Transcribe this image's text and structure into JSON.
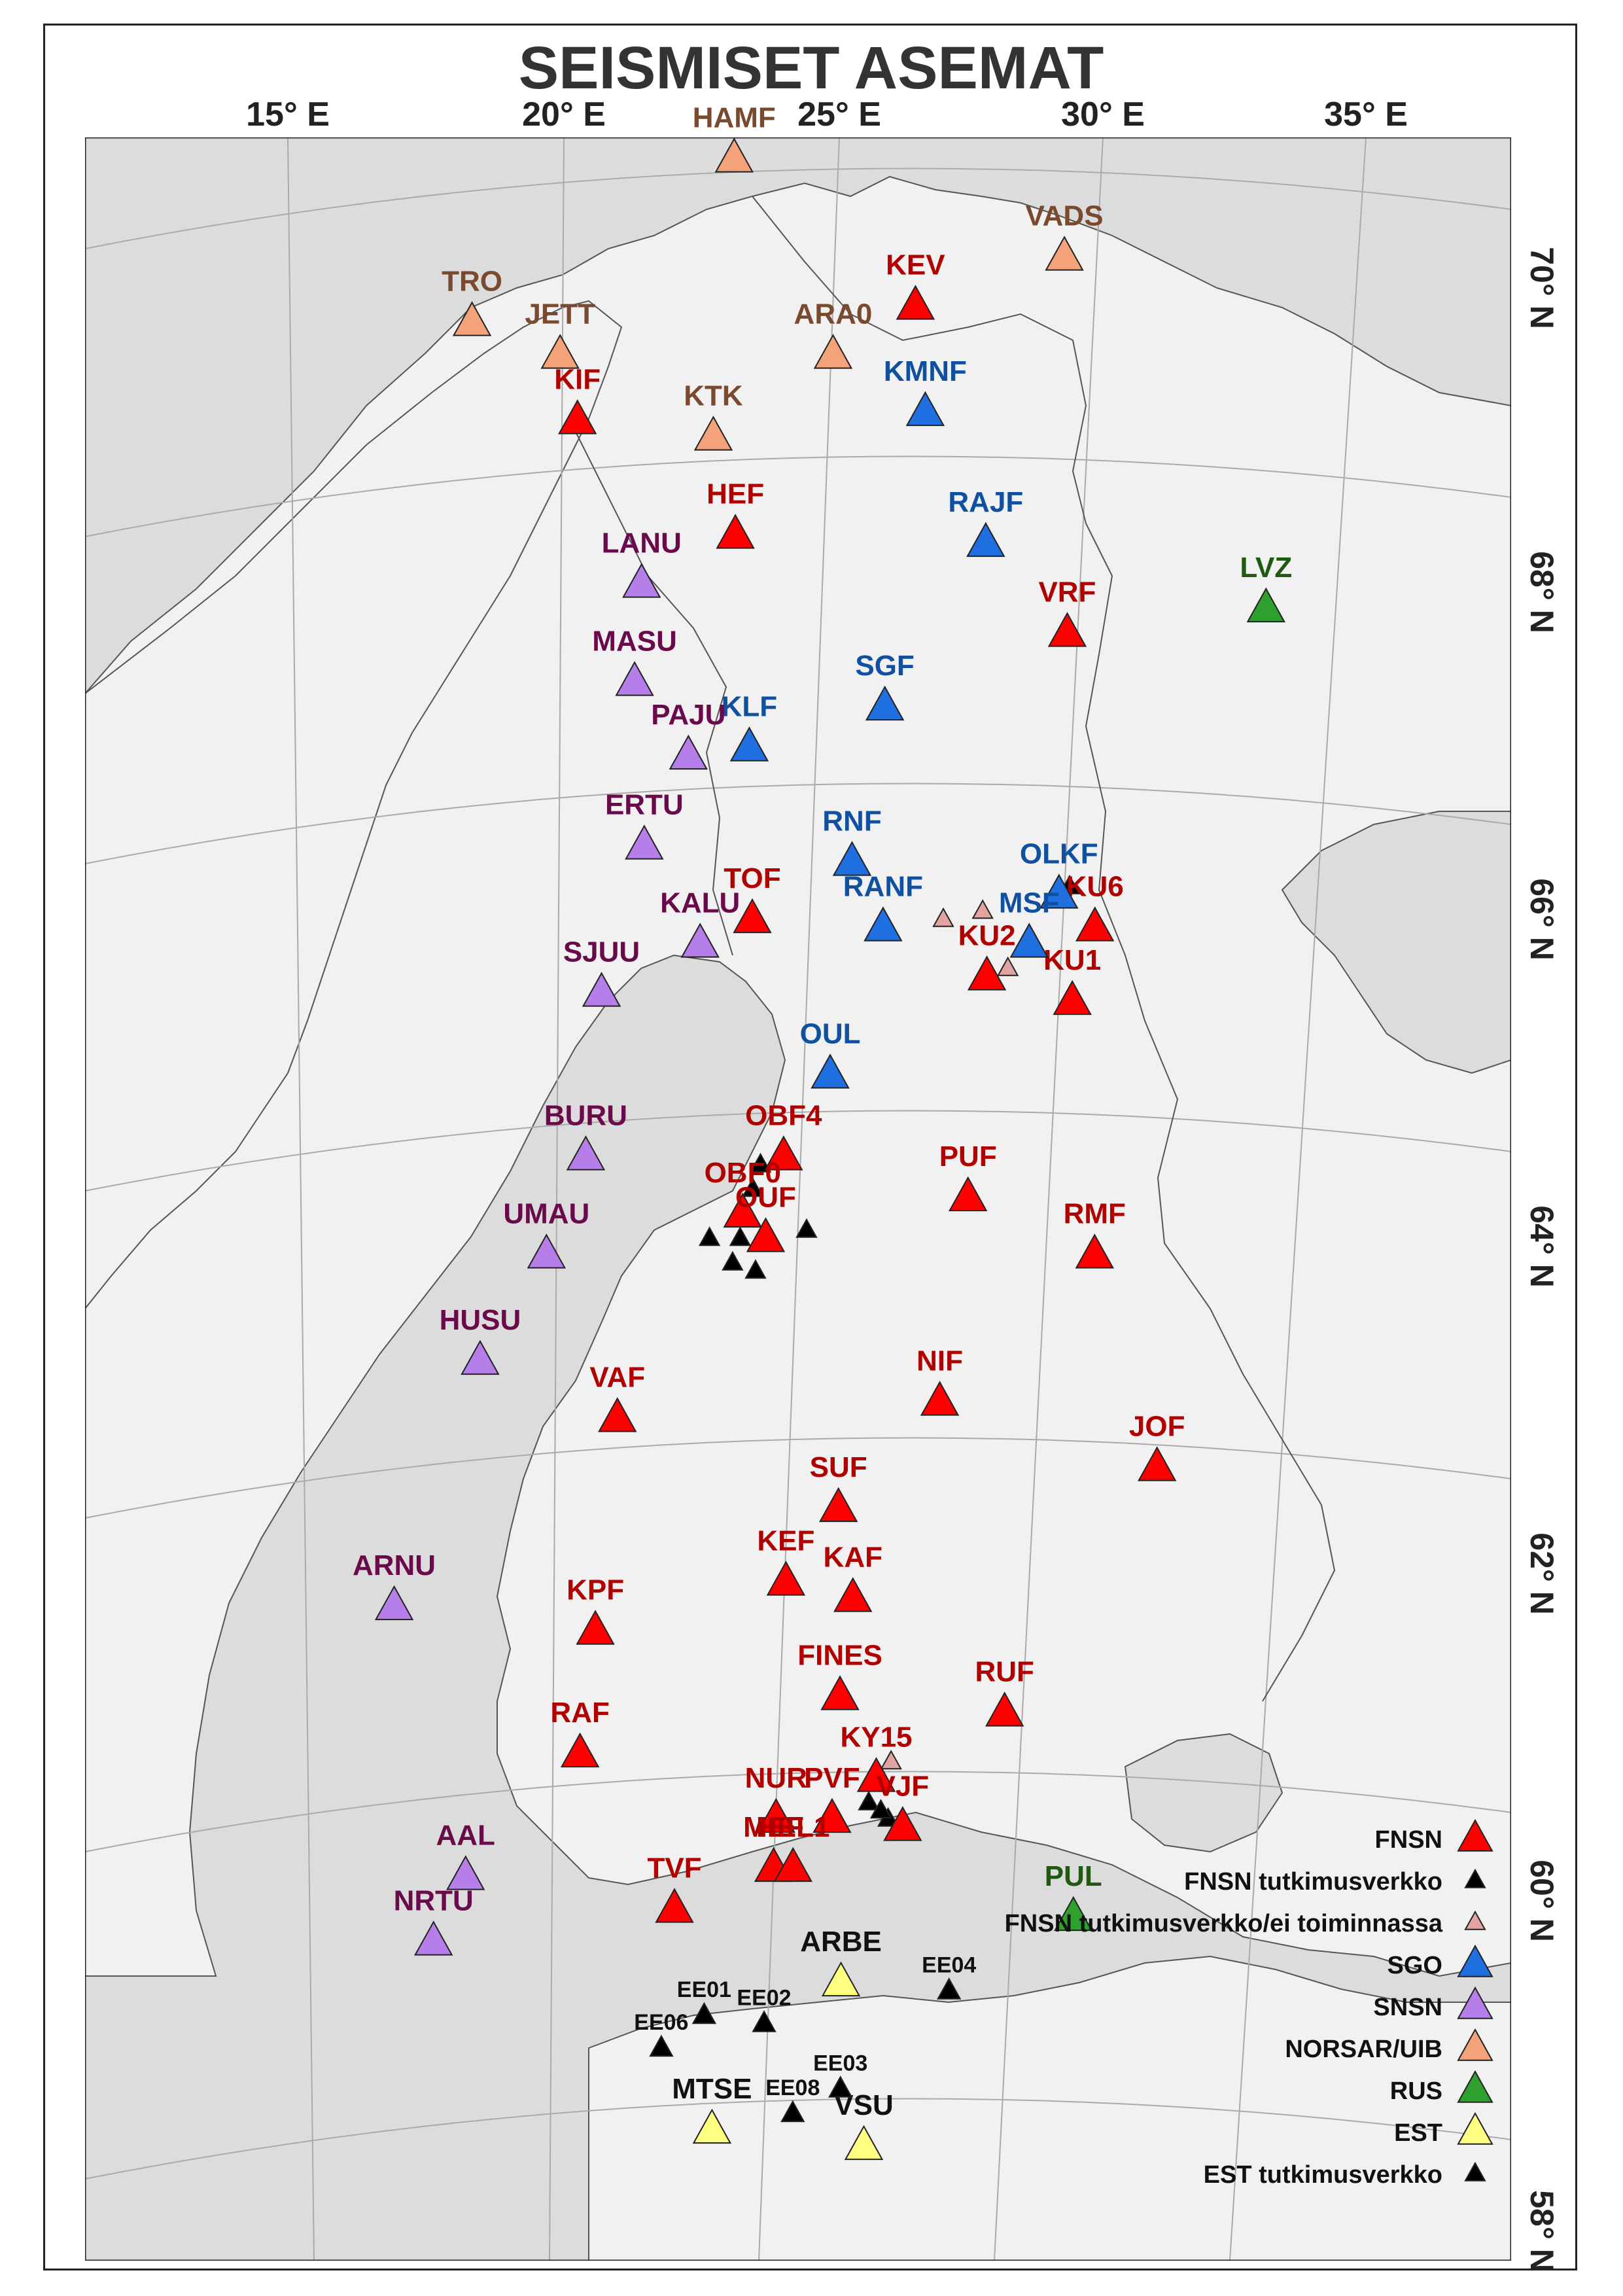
{
  "title": "SEISMISET ASEMAT",
  "lon_labels": [
    "15° E",
    "20° E",
    "25° E",
    "30° E",
    "35° E"
  ],
  "lat_labels": [
    "70° N",
    "68° N",
    "66° N",
    "64° N",
    "62° N",
    "60° N",
    "58° N"
  ],
  "networks": {
    "FNSN": {
      "label": "FNSN",
      "color": "#ff0000",
      "size": "large"
    },
    "FNSN_T": {
      "label": "FNSN tutkimusverkko",
      "color": "#000000",
      "size": "small"
    },
    "FNSN_E": {
      "label": "FNSN tutkimusverkko/ei toiminnassa",
      "color": "#e3a3a3",
      "size": "small"
    },
    "SGO": {
      "label": "SGO",
      "color": "#1f6fe0",
      "size": "large"
    },
    "SNSN": {
      "label": "SNSN",
      "color": "#b57ee8",
      "size": "large"
    },
    "NORSAR": {
      "label": "NORSAR/UIB",
      "color": "#f4a27a",
      "size": "large"
    },
    "RUS": {
      "label": "RUS",
      "color": "#2ea02e",
      "size": "large"
    },
    "EST": {
      "label": "EST",
      "color": "#ffff80",
      "size": "large"
    },
    "EST_T": {
      "label": "EST tutkimusverkko",
      "color": "#000000",
      "size": "small"
    }
  },
  "legend_order": [
    "FNSN",
    "FNSN_T",
    "FNSN_E",
    "SGO",
    "SNSN",
    "NORSAR",
    "RUS",
    "EST",
    "EST_T"
  ],
  "label_colors": {
    "FNSN": "#b00000",
    "SGO": "#1050a0",
    "SNSN": "#6a0a4a",
    "NORSAR": "#7a4a30",
    "RUS": "#1f5a10",
    "EST": "#111111"
  },
  "stations": [
    {
      "name": "HAMF",
      "net": "NORSAR",
      "lon": 23.7,
      "lat": 70.65
    },
    {
      "name": "VADS",
      "net": "NORSAR",
      "lon": 29.7,
      "lat": 70.05
    },
    {
      "name": "TRO",
      "net": "NORSAR",
      "lon": 18.9,
      "lat": 69.65
    },
    {
      "name": "JETT",
      "net": "NORSAR",
      "lon": 20.5,
      "lat": 69.45
    },
    {
      "name": "ARA0",
      "net": "NORSAR",
      "lon": 25.5,
      "lat": 69.45
    },
    {
      "name": "KTK",
      "net": "NORSAR",
      "lon": 23.3,
      "lat": 68.95
    },
    {
      "name": "KEV",
      "net": "FNSN",
      "lon": 27.0,
      "lat": 69.75
    },
    {
      "name": "KIF",
      "net": "FNSN",
      "lon": 20.8,
      "lat": 69.05
    },
    {
      "name": "HEF",
      "net": "FNSN",
      "lon": 23.7,
      "lat": 68.35
    },
    {
      "name": "VRF",
      "net": "FNSN",
      "lon": 29.9,
      "lat": 67.75
    },
    {
      "name": "TOF",
      "net": "FNSN",
      "lon": 24.0,
      "lat": 66.0
    },
    {
      "name": "KU6",
      "net": "FNSN",
      "lon": 30.55,
      "lat": 65.95
    },
    {
      "name": "KU2",
      "net": "FNSN",
      "lon": 28.5,
      "lat": 65.65
    },
    {
      "name": "KU1",
      "net": "FNSN",
      "lon": 30.15,
      "lat": 65.5
    },
    {
      "name": "OBF4",
      "net": "FNSN",
      "lon": 24.6,
      "lat": 64.55
    },
    {
      "name": "OBF0",
      "net": "FNSN",
      "lon": 23.8,
      "lat": 64.2
    },
    {
      "name": "OUF",
      "net": "FNSN",
      "lon": 24.25,
      "lat": 64.05
    },
    {
      "name": "PUF",
      "net": "FNSN",
      "lon": 28.2,
      "lat": 64.3
    },
    {
      "name": "RMF",
      "net": "FNSN",
      "lon": 30.7,
      "lat": 63.95
    },
    {
      "name": "NIF",
      "net": "FNSN",
      "lon": 27.7,
      "lat": 63.05
    },
    {
      "name": "JOF",
      "net": "FNSN",
      "lon": 32.05,
      "lat": 62.65
    },
    {
      "name": "VAF",
      "net": "FNSN",
      "lon": 21.3,
      "lat": 62.95
    },
    {
      "name": "SUF",
      "net": "FNSN",
      "lon": 25.7,
      "lat": 62.4
    },
    {
      "name": "KEF",
      "net": "FNSN",
      "lon": 24.65,
      "lat": 61.95
    },
    {
      "name": "KAF",
      "net": "FNSN",
      "lon": 26.0,
      "lat": 61.85
    },
    {
      "name": "KPF",
      "net": "FNSN",
      "lon": 20.8,
      "lat": 61.65
    },
    {
      "name": "FINES",
      "net": "FNSN",
      "lon": 25.75,
      "lat": 61.25
    },
    {
      "name": "RUF",
      "net": "FNSN",
      "lon": 29.1,
      "lat": 61.15
    },
    {
      "name": "RAF",
      "net": "FNSN",
      "lon": 20.45,
      "lat": 60.9
    },
    {
      "name": "KY15",
      "net": "FNSN",
      "lon": 26.5,
      "lat": 60.75
    },
    {
      "name": "NUR",
      "net": "FNSN",
      "lon": 24.45,
      "lat": 60.5
    },
    {
      "name": "PVF",
      "net": "FNSN",
      "lon": 25.6,
      "lat": 60.5
    },
    {
      "name": "VJF",
      "net": "FNSN",
      "lon": 27.05,
      "lat": 60.45
    },
    {
      "name": "MEF",
      "net": "FNSN",
      "lon": 24.4,
      "lat": 60.2
    },
    {
      "name": "HEL1",
      "net": "FNSN",
      "lon": 24.8,
      "lat": 60.2
    },
    {
      "name": "TVF",
      "net": "FNSN",
      "lon": 22.35,
      "lat": 59.95
    },
    {
      "name": "KMNF",
      "net": "SGO",
      "lon": 27.2,
      "lat": 69.1
    },
    {
      "name": "RAJF",
      "net": "SGO",
      "lon": 28.35,
      "lat": 68.3
    },
    {
      "name": "SGF",
      "net": "SGO",
      "lon": 26.5,
      "lat": 67.3
    },
    {
      "name": "KLF",
      "net": "SGO",
      "lon": 23.95,
      "lat": 67.05
    },
    {
      "name": "RNF",
      "net": "SGO",
      "lon": 25.9,
      "lat": 66.35
    },
    {
      "name": "OLKF",
      "net": "SGO",
      "lon": 29.85,
      "lat": 66.15
    },
    {
      "name": "RANF",
      "net": "SGO",
      "lon": 26.5,
      "lat": 65.95
    },
    {
      "name": "MSF",
      "net": "SGO",
      "lon": 29.3,
      "lat": 65.85
    },
    {
      "name": "OUL",
      "net": "SGO",
      "lon": 25.5,
      "lat": 65.05
    },
    {
      "name": "LANU",
      "net": "SNSN",
      "lon": 21.95,
      "lat": 68.05
    },
    {
      "name": "MASU",
      "net": "SNSN",
      "lon": 21.8,
      "lat": 67.45
    },
    {
      "name": "PAJU",
      "net": "SNSN",
      "lon": 22.8,
      "lat": 67.0
    },
    {
      "name": "ERTU",
      "net": "SNSN",
      "lon": 21.95,
      "lat": 66.45
    },
    {
      "name": "KALU",
      "net": "SNSN",
      "lon": 23.0,
      "lat": 65.85
    },
    {
      "name": "SJUU",
      "net": "SNSN",
      "lon": 21.1,
      "lat": 65.55
    },
    {
      "name": "BURU",
      "net": "SNSN",
      "lon": 20.75,
      "lat": 64.55
    },
    {
      "name": "UMAU",
      "net": "SNSN",
      "lon": 19.95,
      "lat": 63.95
    },
    {
      "name": "HUSU",
      "net": "SNSN",
      "lon": 18.6,
      "lat": 63.3
    },
    {
      "name": "ARNU",
      "net": "SNSN",
      "lon": 16.75,
      "lat": 61.8
    },
    {
      "name": "AAL",
      "net": "SNSN",
      "lon": 18.05,
      "lat": 60.15
    },
    {
      "name": "NRTU",
      "net": "SNSN",
      "lon": 17.35,
      "lat": 59.75
    },
    {
      "name": "LVZ",
      "net": "RUS",
      "lon": 33.6,
      "lat": 67.9
    },
    {
      "name": "PUL",
      "net": "RUS",
      "lon": 30.6,
      "lat": 59.9
    },
    {
      "name": "ARBE",
      "net": "EST",
      "lon": 25.8,
      "lat": 59.5
    },
    {
      "name": "MTSE",
      "net": "EST",
      "lon": 23.1,
      "lat": 58.6
    },
    {
      "name": "VSU",
      "net": "EST",
      "lon": 26.3,
      "lat": 58.5
    },
    {
      "name": "EE01",
      "net": "EST_T",
      "lon": 22.95,
      "lat": 59.3
    },
    {
      "name": "EE02",
      "net": "EST_T",
      "lon": 24.2,
      "lat": 59.25
    },
    {
      "name": "EE04",
      "net": "EST_T",
      "lon": 28.05,
      "lat": 59.45
    },
    {
      "name": "EE06",
      "net": "EST_T",
      "lon": 22.05,
      "lat": 59.1
    },
    {
      "name": "EE03",
      "net": "EST_T",
      "lon": 25.8,
      "lat": 58.85
    },
    {
      "name": "EE08",
      "net": "EST_T",
      "lon": 24.8,
      "lat": 58.7
    }
  ],
  "minor_markers": [
    {
      "net": "FNSN_T",
      "lon": 30.05,
      "lat": 66.2
    },
    {
      "net": "FNSN_T",
      "lon": 24.15,
      "lat": 64.5
    },
    {
      "net": "FNSN_T",
      "lon": 24.0,
      "lat": 64.35
    },
    {
      "net": "FNSN_T",
      "lon": 25.05,
      "lat": 64.1
    },
    {
      "net": "FNSN_T",
      "lon": 23.15,
      "lat": 64.05
    },
    {
      "net": "FNSN_T",
      "lon": 23.75,
      "lat": 64.05
    },
    {
      "net": "FNSN_T",
      "lon": 23.6,
      "lat": 63.9
    },
    {
      "net": "FNSN_T",
      "lon": 24.05,
      "lat": 63.85
    },
    {
      "net": "FNSN_T",
      "lon": 26.75,
      "lat": 60.5
    },
    {
      "net": "FNSN_T",
      "lon": 26.35,
      "lat": 60.6
    },
    {
      "net": "FNSN_T",
      "lon": 26.6,
      "lat": 60.55
    },
    {
      "net": "FNSN_E",
      "lon": 27.65,
      "lat": 66.0
    },
    {
      "net": "FNSN_E",
      "lon": 28.4,
      "lat": 66.05
    },
    {
      "net": "FNSN_E",
      "lon": 28.9,
      "lat": 65.7
    },
    {
      "net": "FNSN_E",
      "lon": 26.8,
      "lat": 60.85
    }
  ]
}
